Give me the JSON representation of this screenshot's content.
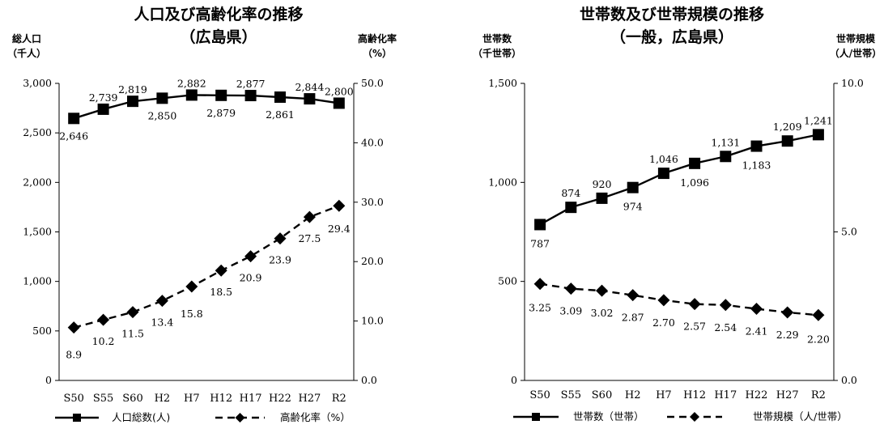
{
  "chart_data": [
    {
      "type": "line",
      "title": "人口及び高齢化率の推移",
      "subtitle": "（広島県）",
      "ylabel_left": "総人口",
      "ylabel_left_unit": "（千人）",
      "ylabel_right": "高齢化率",
      "ylabel_right_unit": "（%）",
      "categories": [
        "S50",
        "S55",
        "S60",
        "H2",
        "H7",
        "H12",
        "H17",
        "H22",
        "H27",
        "R2"
      ],
      "ylim_left": [
        0,
        3000
      ],
      "yticks_left": [
        "0",
        "500",
        "1,000",
        "1,500",
        "2,000",
        "2,500",
        "3,000"
      ],
      "ylim_right": [
        0,
        50
      ],
      "yticks_right": [
        "0.0",
        "10.0",
        "20.0",
        "30.0",
        "40.0",
        "50.0"
      ],
      "series": [
        {
          "name": "人口総数(人)",
          "axis": "left",
          "style": "solid",
          "marker": "square",
          "values": [
            2646,
            2739,
            2819,
            2850,
            2882,
            2879,
            2877,
            2861,
            2844,
            2800
          ],
          "labels": [
            "2,646",
            "2,739",
            "2,819",
            "2,850",
            "2,882",
            "2,879",
            "2,877",
            "2,861",
            "2,844",
            "2,800"
          ]
        },
        {
          "name": "高齢化率（%）",
          "axis": "right",
          "style": "dashed",
          "marker": "diamond",
          "values": [
            8.9,
            10.2,
            11.5,
            13.4,
            15.8,
            18.5,
            20.9,
            23.9,
            27.5,
            29.4
          ],
          "labels": [
            "8.9",
            "10.2",
            "11.5",
            "13.4",
            "15.8",
            "18.5",
            "20.9",
            "23.9",
            "27.5",
            "29.4"
          ]
        }
      ],
      "grid": false,
      "legend": "bottom"
    },
    {
      "type": "line",
      "title": "世帯数及び世帯規模の推移",
      "subtitle": "（一般，広島県）",
      "ylabel_left": "世帯数",
      "ylabel_left_unit": "（千世帯）",
      "ylabel_right": "世帯規模",
      "ylabel_right_unit": "（人/世帯）",
      "categories": [
        "S50",
        "S55",
        "S60",
        "H2",
        "H7",
        "H12",
        "H17",
        "H22",
        "H27",
        "R2"
      ],
      "ylim_left": [
        0,
        1500
      ],
      "yticks_left": [
        "0",
        "500",
        "1,000",
        "1,500"
      ],
      "ylim_right": [
        0,
        10
      ],
      "yticks_right": [
        "0.0",
        "5.0",
        "10.0"
      ],
      "series": [
        {
          "name": "世帯数（世帯）",
          "axis": "left",
          "style": "solid",
          "marker": "square",
          "values": [
            787,
            874,
            920,
            974,
            1046,
            1096,
            1131,
            1183,
            1209,
            1241
          ],
          "labels": [
            "787",
            "874",
            "920",
            "974",
            "1,046",
            "1,096",
            "1,131",
            "1,183",
            "1,209",
            "1,241"
          ]
        },
        {
          "name": "世帯規模（人/世帯）",
          "axis": "right",
          "style": "dashed",
          "marker": "diamond",
          "values": [
            3.25,
            3.09,
            3.02,
            2.87,
            2.7,
            2.57,
            2.54,
            2.41,
            2.29,
            2.2
          ],
          "labels": [
            "3.25",
            "3.09",
            "3.02",
            "2.87",
            "2.70",
            "2.57",
            "2.54",
            "2.41",
            "2.29",
            "2.20"
          ]
        }
      ],
      "grid": false,
      "legend": "bottom"
    }
  ]
}
